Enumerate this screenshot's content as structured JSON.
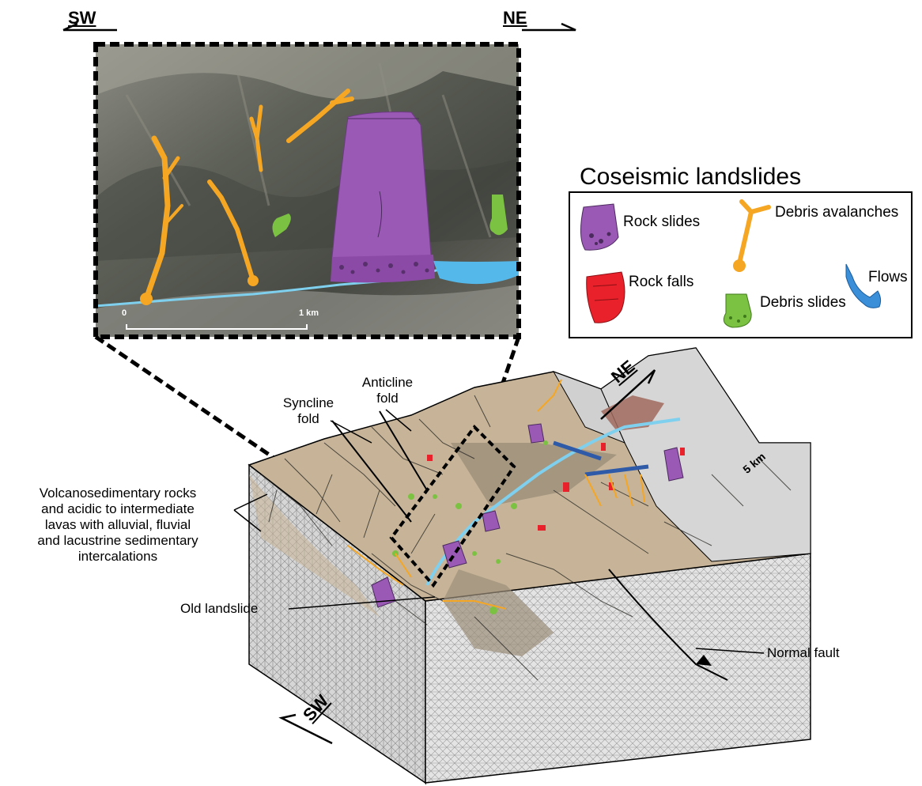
{
  "inset": {
    "direction_left": "SW",
    "direction_right": "NE",
    "scale_start": "0",
    "scale_end": "1 km"
  },
  "legend": {
    "title": "Coseismic landslides",
    "items": {
      "rock_slides": "Rock slides",
      "debris_avalanches": "Debris avalanches",
      "rock_falls": "Rock falls",
      "debris_slides": "Debris slides",
      "flows": "Flows"
    },
    "colors": {
      "rock_slides": "#9b59b6",
      "debris_avalanches": "#f5a623",
      "rock_falls": "#e8212a",
      "debris_slides": "#7cc242",
      "flows": "#3a8fd8"
    }
  },
  "block": {
    "direction_ne": "NE",
    "direction_sw": "SW",
    "distance": "5 km",
    "labels": {
      "syncline": "Syncline\nfold",
      "anticline": "Anticline\nfold",
      "volcano": "Volcanosedimentary rocks\nand acidic to intermediate\nlavas with alluvial, fluvial\nand lacustrine sedimentary\nintercalations",
      "old_landslide": "Old landslide",
      "normal_fault": "Normal fault"
    }
  },
  "colors": {
    "terrain": "#c7b498",
    "terrain_dark": "#9c8e7a",
    "bedrock": "#bdbdbd",
    "satellite": "#5d5f57",
    "river": "#7fd0ee"
  }
}
